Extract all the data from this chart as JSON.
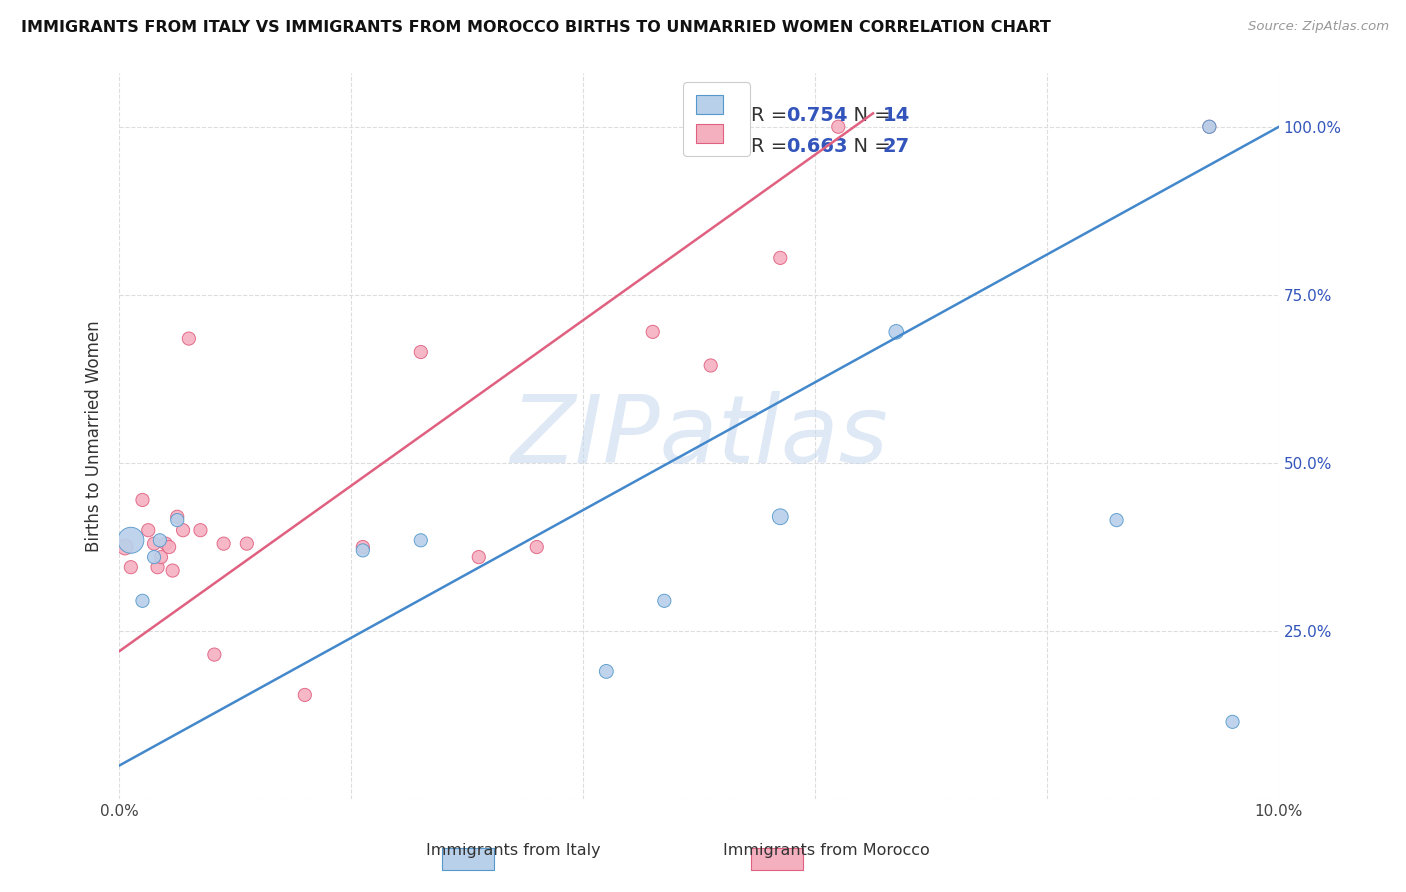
{
  "title": "IMMIGRANTS FROM ITALY VS IMMIGRANTS FROM MOROCCO BIRTHS TO UNMARRIED WOMEN CORRELATION CHART",
  "source": "Source: ZipAtlas.com",
  "ylabel": "Births to Unmarried Women",
  "xlabel_italy": "Immigrants from Italy",
  "xlabel_morocco": "Immigrants from Morocco",
  "xlim": [
    0.0,
    0.1
  ],
  "ylim": [
    0.0,
    1.08
  ],
  "italy_R": 0.754,
  "italy_N": 14,
  "morocco_R": 0.663,
  "morocco_N": 27,
  "italy_fill": "#b8d0ea",
  "morocco_fill": "#f5b0c0",
  "italy_edge": "#5599cc",
  "morocco_edge": "#e06080",
  "italy_line": "#4488cc",
  "morocco_line": "#e06080",
  "blue_label": "#3355bb",
  "watermark": "ZIPatlas",
  "italy_x": [
    0.001,
    0.002,
    0.003,
    0.0035,
    0.005,
    0.021,
    0.026,
    0.042,
    0.047,
    0.057,
    0.067,
    0.086,
    0.094,
    0.096
  ],
  "italy_y": [
    0.385,
    0.295,
    0.36,
    0.385,
    0.415,
    0.37,
    0.385,
    0.19,
    0.295,
    0.42,
    0.695,
    0.415,
    1.0,
    0.115
  ],
  "italy_s": [
    350,
    90,
    90,
    90,
    90,
    90,
    90,
    100,
    90,
    130,
    110,
    90,
    90,
    90
  ],
  "morocco_x": [
    0.0005,
    0.001,
    0.002,
    0.0025,
    0.003,
    0.0033,
    0.0036,
    0.004,
    0.0043,
    0.0046,
    0.005,
    0.0055,
    0.006,
    0.007,
    0.0082,
    0.009,
    0.011,
    0.016,
    0.021,
    0.026,
    0.031,
    0.036,
    0.046,
    0.051,
    0.057,
    0.062,
    0.094
  ],
  "morocco_y": [
    0.375,
    0.345,
    0.445,
    0.4,
    0.38,
    0.345,
    0.36,
    0.38,
    0.375,
    0.34,
    0.42,
    0.4,
    0.685,
    0.4,
    0.215,
    0.38,
    0.38,
    0.155,
    0.375,
    0.665,
    0.36,
    0.375,
    0.695,
    0.645,
    0.805,
    1.0,
    1.0
  ],
  "morocco_s": [
    130,
    90,
    90,
    90,
    90,
    90,
    90,
    90,
    90,
    90,
    90,
    90,
    90,
    90,
    90,
    90,
    90,
    90,
    90,
    90,
    90,
    90,
    90,
    90,
    90,
    90,
    90
  ],
  "italy_line_x0": 0.0,
  "italy_line_x1": 0.1,
  "italy_line_y0": 0.05,
  "italy_line_y1": 1.0,
  "morocco_line_x0": 0.0,
  "morocco_line_x1": 0.065,
  "morocco_line_y0": 0.22,
  "morocco_line_y1": 1.02
}
